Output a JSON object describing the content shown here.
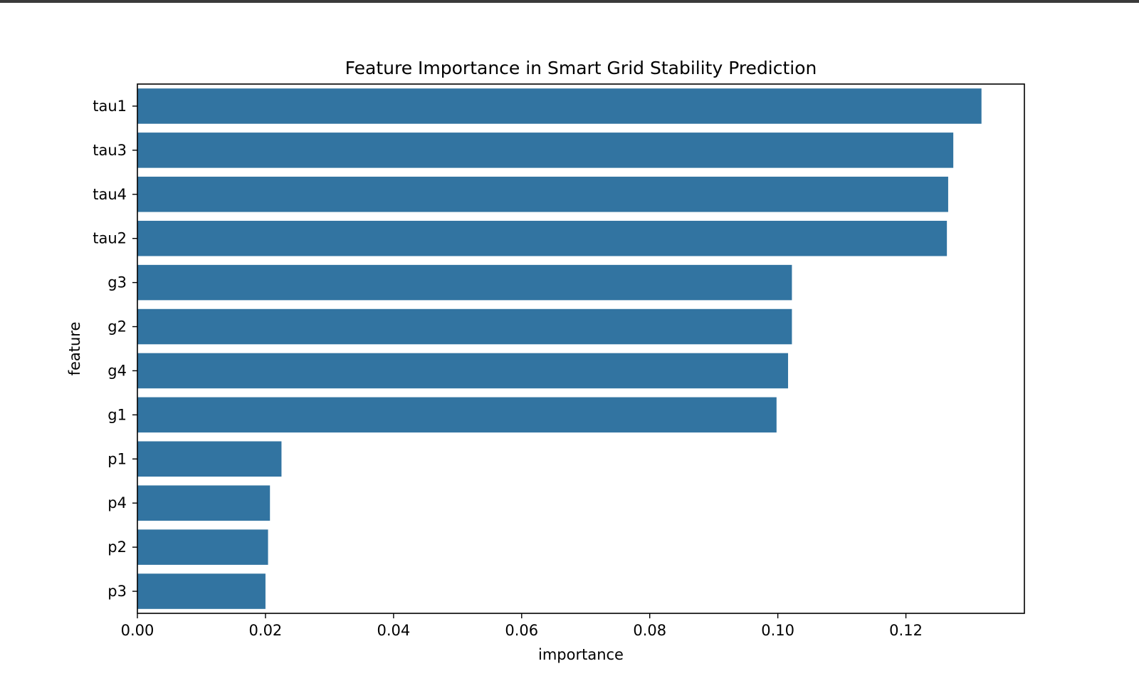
{
  "chart_data": {
    "type": "bar",
    "orientation": "horizontal",
    "title": "Feature Importance in Smart Grid Stability Prediction",
    "xlabel": "importance",
    "ylabel": "feature",
    "categories": [
      "tau1",
      "tau3",
      "tau4",
      "tau2",
      "g3",
      "g2",
      "g4",
      "g1",
      "p1",
      "p4",
      "p2",
      "p3"
    ],
    "values": [
      0.1318,
      0.1274,
      0.1266,
      0.1264,
      0.1022,
      0.1022,
      0.1016,
      0.0998,
      0.0225,
      0.0207,
      0.0204,
      0.02
    ],
    "xlim": [
      0,
      0.1385
    ],
    "xticks": [
      "0.00",
      "0.02",
      "0.04",
      "0.06",
      "0.08",
      "0.10",
      "0.12"
    ],
    "xtick_values": [
      0,
      0.02,
      0.04,
      0.06,
      0.08,
      0.1,
      0.12
    ],
    "bar_color": "#3274a1",
    "grid": false,
    "legend": "none"
  }
}
